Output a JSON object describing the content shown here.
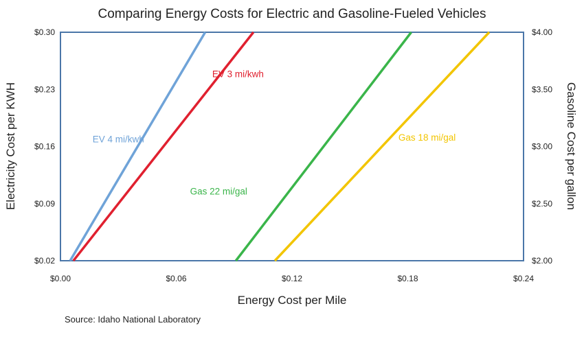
{
  "chart_data": {
    "type": "line",
    "title": "Comparing Energy Costs for Electric and Gasoline-Fueled Vehicles",
    "xlabel": "Energy Cost per Mile",
    "ylabel": "Electricity Cost per KWH",
    "y2label": "Gasoline Cost per gallon",
    "source": "Source:  Idaho National Laboratory",
    "xlim": [
      0,
      0.24
    ],
    "ylim": [
      0.02,
      0.3
    ],
    "y2lim": [
      2.0,
      4.0
    ],
    "xticks": [
      "$0.00",
      "$0.06",
      "$0.12",
      "$0.18",
      "$0.24"
    ],
    "xtick_values": [
      0,
      0.06,
      0.12,
      0.18,
      0.24
    ],
    "yticks": [
      "$0.02",
      "$0.09",
      "$0.16",
      "$0.23",
      "$0.30"
    ],
    "y2ticks": [
      "$2.00",
      "$2.50",
      "$3.00",
      "$3.50",
      "$4.00"
    ],
    "grid": false,
    "series": [
      {
        "name": "EV 4 mi/kwh",
        "axis": "left",
        "color": "#6fa3d8",
        "x": [
          0.005,
          0.075
        ],
        "y": [
          0.02,
          0.3
        ],
        "label_at": [
          0.03,
          0.165
        ]
      },
      {
        "name": "EV 3 mi/kwh",
        "axis": "left",
        "color": "#e0202f",
        "x": [
          0.0067,
          0.1
        ],
        "y": [
          0.02,
          0.3
        ],
        "label_at": [
          0.092,
          0.245
        ]
      },
      {
        "name": "Gas 22 mi/gal",
        "axis": "right",
        "color": "#3ab54a",
        "x": [
          0.0909,
          0.1818
        ],
        "y": [
          2.0,
          4.0
        ],
        "label_at": [
          0.082,
          2.58
        ]
      },
      {
        "name": "Gas 18 mi/gal",
        "axis": "right",
        "color": "#f2c500",
        "x": [
          0.1111,
          0.2222
        ],
        "y": [
          2.0,
          4.0
        ],
        "label_at": [
          0.19,
          3.05
        ]
      }
    ]
  }
}
